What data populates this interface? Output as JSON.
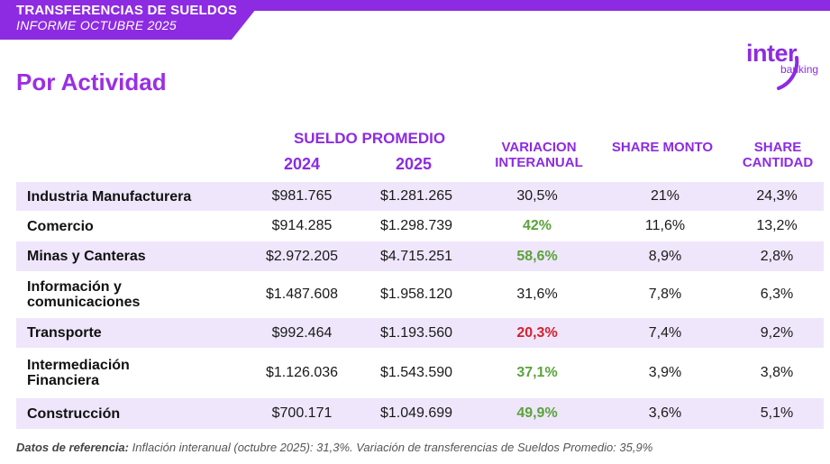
{
  "header": {
    "title": "TRANSFERENCIAS DE SUELDOS",
    "subtitle": "INFORME OCTUBRE 2025"
  },
  "logo": {
    "main": "inter",
    "sub": "banking"
  },
  "section_title": "Por Actividad",
  "table": {
    "group_header": "SUELDO PROMEDIO",
    "year1": "2024",
    "year2": "2025",
    "col_var": "VARIACION INTERANUAL",
    "col_share_monto": "SHARE MONTO",
    "col_share_cantidad": "SHARE CANTIDAD",
    "rows": [
      {
        "name": "Industria Manufacturera",
        "y2024": "$981.765",
        "y2025": "$1.281.265",
        "var": "30,5%",
        "share_monto": "21%",
        "share_cantidad": "24,3%"
      },
      {
        "name": "Comercio",
        "y2024": "$914.285",
        "y2025": "$1.298.739",
        "var": "42%",
        "share_monto": "11,6%",
        "share_cantidad": "13,2%"
      },
      {
        "name": "Minas y Canteras",
        "y2024": "$2.972.205",
        "y2025": "$4.715.251",
        "var": "58,6%",
        "share_monto": "8,9%",
        "share_cantidad": "2,8%"
      },
      {
        "name": "Información y comunicaciones",
        "y2024": "$1.487.608",
        "y2025": "$1.958.120",
        "var": "31,6%",
        "share_monto": "7,8%",
        "share_cantidad": "6,3%"
      },
      {
        "name": "Transporte",
        "y2024": "$992.464",
        "y2025": "$1.193.560",
        "var": "20,3%",
        "share_monto": "7,4%",
        "share_cantidad": "9,2%"
      },
      {
        "name": "Intermediación Financiera",
        "y2024": "$1.126.036",
        "y2025": "$1.543.590",
        "var": "37,1%",
        "share_monto": "3,9%",
        "share_cantidad": "3,8%"
      },
      {
        "name": "Construcción",
        "y2024": "$700.171",
        "y2025": "$1.049.699",
        "var": "49,9%",
        "share_monto": "3,6%",
        "share_cantidad": "5,1%"
      }
    ]
  },
  "footnote": {
    "label": "Datos de referencia:",
    "text": "Inflación interanual (octubre 2025): 31,3%. Variación de transferencias de Sueldos Promedio: 35,9%"
  },
  "colors": {
    "accent": "#8d2be2",
    "row_shade": "#efe6fb",
    "positive": "#5aa33b",
    "negative": "#d4202f"
  }
}
